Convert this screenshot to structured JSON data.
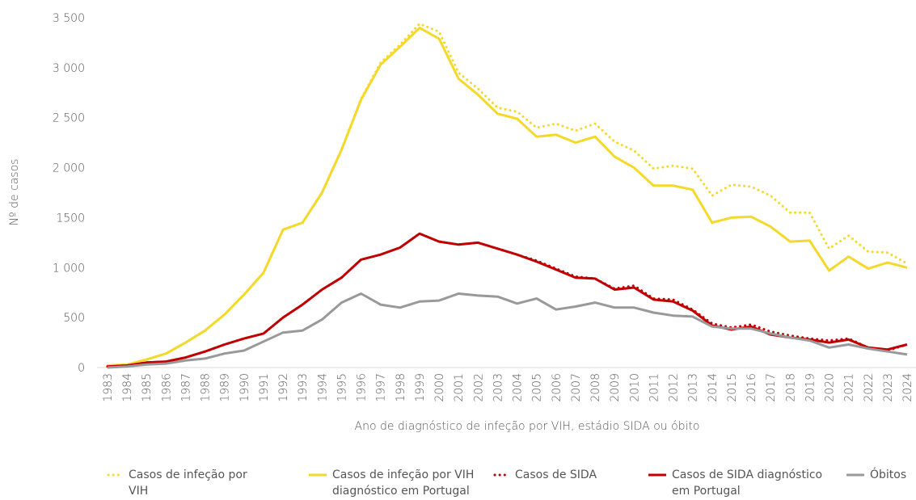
{
  "chart_data": {
    "type": "line",
    "ylabel": "Nº de casos",
    "xlabel": "Ano  de diagnóstico de infeção por VIH, estádio SIDA ou óbito",
    "categories": [
      "1983",
      "1984",
      "1985",
      "1986",
      "1987",
      "1988",
      "1989",
      "1990",
      "1991",
      "1992",
      "1993",
      "1994",
      "1995",
      "1996",
      "1997",
      "1998",
      "1999",
      "2000",
      "2001",
      "2002",
      "2003",
      "2004",
      "2005",
      "2006",
      "2007",
      "2008",
      "2009",
      "2010",
      "2011",
      "2012",
      "2013",
      "2014",
      "2015",
      "2016",
      "2017",
      "2018",
      "2019",
      "2020",
      "2021",
      "2022",
      "2023",
      "2024"
    ],
    "ylim": [
      0,
      3500
    ],
    "yticks": [
      0,
      500,
      {
        "value": 1000,
        "label": "1 000"
      },
      1500,
      {
        "value": 2000,
        "label": "2 000"
      },
      {
        "value": 2500,
        "label": "2 500"
      },
      {
        "value": 3000,
        "label": "3 000"
      },
      {
        "value": 3500,
        "label": "3 500"
      }
    ],
    "grid": false,
    "series": [
      {
        "name": "Casos de infeção por VIH",
        "color": "#f5d92a",
        "dotted": true,
        "values": [
          20,
          30,
          80,
          140,
          250,
          370,
          530,
          730,
          950,
          1380,
          1450,
          1750,
          2180,
          2690,
          3050,
          3230,
          3440,
          3360,
          2950,
          2790,
          2600,
          2560,
          2400,
          2440,
          2370,
          2440,
          2260,
          2170,
          1990,
          2020,
          1990,
          1720,
          1830,
          1810,
          1720,
          1550,
          1550,
          1190,
          1320,
          1160,
          1150,
          1040
        ]
      },
      {
        "name": "Casos de infeção por VIH diagnóstico em Portugal",
        "color": "#f5d92a",
        "dotted": false,
        "values": [
          20,
          30,
          80,
          140,
          250,
          370,
          530,
          730,
          950,
          1380,
          1450,
          1750,
          2180,
          2680,
          3030,
          3210,
          3400,
          3290,
          2890,
          2730,
          2540,
          2490,
          2310,
          2330,
          2250,
          2310,
          2110,
          2000,
          1820,
          1820,
          1780,
          1450,
          1500,
          1510,
          1410,
          1260,
          1270,
          970,
          1110,
          990,
          1050,
          1000
        ]
      },
      {
        "name": "Casos de SIDA",
        "color": "#c00000",
        "dotted": true,
        "values": [
          10,
          20,
          50,
          60,
          100,
          160,
          230,
          290,
          340,
          500,
          630,
          780,
          900,
          1080,
          1130,
          1200,
          1340,
          1260,
          1230,
          1250,
          1190,
          1130,
          1070,
          990,
          910,
          890,
          790,
          820,
          690,
          680,
          580,
          440,
          400,
          430,
          360,
          320,
          290,
          270,
          290,
          200,
          170,
          230
        ]
      },
      {
        "name": "Casos de SIDA diagnóstico em Portugal",
        "color": "#c00000",
        "dotted": false,
        "values": [
          10,
          20,
          50,
          60,
          100,
          160,
          230,
          290,
          340,
          500,
          630,
          780,
          900,
          1080,
          1130,
          1200,
          1340,
          1260,
          1230,
          1250,
          1190,
          1130,
          1060,
          980,
          900,
          890,
          780,
          800,
          680,
          660,
          570,
          420,
          380,
          410,
          330,
          300,
          280,
          250,
          280,
          200,
          180,
          230
        ]
      },
      {
        "name": "Óbitos",
        "color": "#999999",
        "dotted": false,
        "values": [
          0,
          10,
          30,
          40,
          70,
          90,
          140,
          170,
          260,
          350,
          370,
          480,
          650,
          740,
          630,
          600,
          660,
          670,
          740,
          720,
          710,
          640,
          690,
          580,
          610,
          650,
          600,
          600,
          550,
          520,
          510,
          410,
          390,
          390,
          340,
          300,
          270,
          200,
          230,
          190,
          160,
          130
        ]
      }
    ]
  }
}
